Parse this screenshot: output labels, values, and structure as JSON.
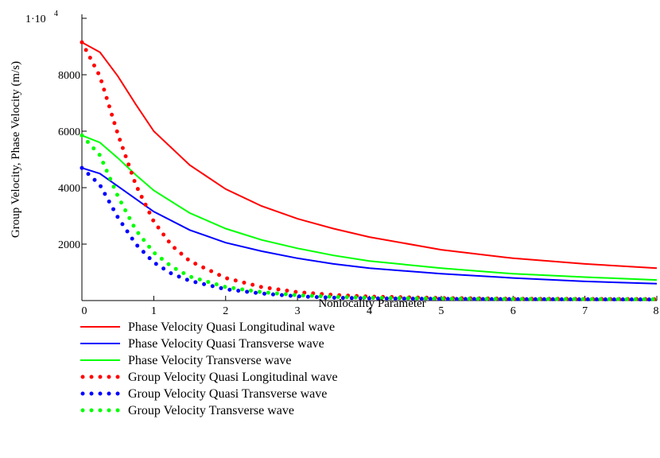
{
  "chart_data": {
    "type": "line",
    "xlabel": "Nonlocality Parameter",
    "ylabel": "Group Velocity, Phase Velocity (m/s)",
    "xlim": [
      0,
      8
    ],
    "ylim": [
      0,
      10000
    ],
    "x_ticks": [
      "0",
      "1",
      "2",
      "3",
      "4",
      "5",
      "6",
      "7",
      "8"
    ],
    "y_ticks": [
      {
        "value": 2000,
        "label": "2000"
      },
      {
        "value": 4000,
        "label": "4000"
      },
      {
        "value": 6000,
        "label": "6000"
      },
      {
        "value": 8000,
        "label": "8000"
      }
    ],
    "y_top_label": {
      "base": "1·10",
      "exp": "4"
    },
    "legend_position": "bottom-left",
    "series": [
      {
        "name": "Phase Velocity Quasi Longitudinal wave",
        "color": "#ff0000",
        "style": "solid",
        "x": [
          0,
          0.25,
          0.5,
          0.75,
          1,
          1.5,
          2,
          2.5,
          3,
          3.5,
          4,
          5,
          6,
          7,
          8
        ],
        "y": [
          9150,
          8800,
          7950,
          6950,
          6000,
          4800,
          3950,
          3350,
          2900,
          2550,
          2250,
          1800,
          1500,
          1300,
          1150
        ]
      },
      {
        "name": "Phase Velocity Quasi Transverse wave",
        "color": "#0000ff",
        "style": "solid",
        "x": [
          0,
          0.25,
          0.5,
          0.75,
          1,
          1.5,
          2,
          2.5,
          3,
          3.5,
          4,
          5,
          6,
          7,
          8
        ],
        "y": [
          4700,
          4500,
          4050,
          3600,
          3150,
          2500,
          2050,
          1750,
          1500,
          1300,
          1150,
          950,
          800,
          680,
          600
        ]
      },
      {
        "name": "Phase Velocity  Transverse wave",
        "color": "#00ff00",
        "style": "solid",
        "x": [
          0,
          0.25,
          0.5,
          0.75,
          1,
          1.5,
          2,
          2.5,
          3,
          3.5,
          4,
          5,
          6,
          7,
          8
        ],
        "y": [
          5850,
          5600,
          5050,
          4450,
          3900,
          3100,
          2550,
          2150,
          1850,
          1600,
          1400,
          1150,
          950,
          830,
          730
        ]
      },
      {
        "name": "Group Velocity Quasi Longitudinal wave",
        "color": "#ff0000",
        "style": "dotted",
        "x": [
          0,
          0.25,
          0.5,
          0.75,
          1,
          1.25,
          1.5,
          2,
          2.5,
          3,
          3.5,
          4,
          5,
          6,
          7,
          8
        ],
        "y": [
          9150,
          7950,
          5900,
          4100,
          2800,
          1950,
          1400,
          800,
          480,
          300,
          200,
          140,
          90,
          65,
          55,
          50
        ]
      },
      {
        "name": "Group Velocity Quasi Transverse wave",
        "color": "#0000ff",
        "style": "dotted",
        "x": [
          0,
          0.25,
          0.5,
          0.75,
          1,
          1.25,
          1.5,
          2,
          2.5,
          3,
          3.5,
          4,
          5,
          6,
          7,
          8
        ],
        "y": [
          4700,
          4100,
          2950,
          2000,
          1350,
          950,
          700,
          400,
          250,
          150,
          100,
          80,
          60,
          50,
          45,
          40
        ]
      },
      {
        "name": "Group Velocity  Transverse wave",
        "color": "#00ff00",
        "style": "dotted",
        "x": [
          0,
          0.25,
          0.5,
          0.75,
          1,
          1.25,
          1.5,
          2,
          2.5,
          3,
          3.5,
          4,
          5,
          6,
          7,
          8
        ],
        "y": [
          5850,
          5150,
          3700,
          2500,
          1700,
          1200,
          850,
          480,
          300,
          190,
          130,
          100,
          70,
          55,
          50,
          45
        ]
      }
    ]
  }
}
